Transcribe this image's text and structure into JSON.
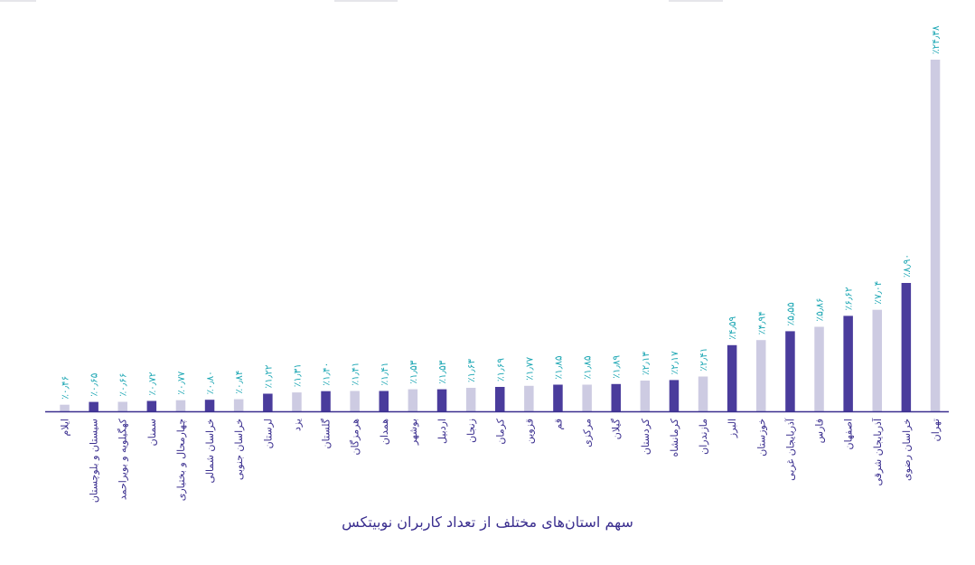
{
  "colors": {
    "dark": "#4a3c9c",
    "light": "#cdcbe2",
    "value_text": "#1ba6b3",
    "label_text": "#3b2f8f",
    "axis": "#3b2f8f"
  },
  "chart_data": {
    "type": "bar",
    "xlabel": "سهم استان‌های مختلف از تعداد کاربران نوبیتکس",
    "ylabel": "",
    "ylim": [
      0,
      24.38
    ],
    "grid": false,
    "categories": [
      "ایلام",
      "سیستان و بلوچستان",
      "کهگیلویه و بویراحمد",
      "سمنان",
      "چهارمحال و بختیاری",
      "خراسان شمالی",
      "خراسان جنوبی",
      "لرستان",
      "یزد",
      "گلستان",
      "هرمزگان",
      "همدان",
      "بوشهر",
      "اردبیل",
      "زنجان",
      "کرمان",
      "قزوین",
      "قم",
      "مرکزی",
      "گیلان",
      "کردستان",
      "کرمانشاه",
      "مازندران",
      "البرز",
      "خوزستان",
      "آذربایجان غربی",
      "فارس",
      "اصفهان",
      "آذربایجان شرقی",
      "خراسان رضوی",
      "تهران"
    ],
    "values": [
      0.46,
      0.65,
      0.66,
      0.72,
      0.77,
      0.8,
      0.84,
      1.22,
      1.31,
      1.4,
      1.41,
      1.41,
      1.53,
      1.53,
      1.63,
      1.69,
      1.77,
      1.85,
      1.85,
      1.89,
      2.13,
      2.17,
      2.41,
      4.59,
      4.94,
      5.55,
      5.86,
      6.62,
      7.04,
      8.9,
      24.38
    ],
    "value_labels": [
      "٪۰٫۴۶",
      "٪۰٫۶۵",
      "٪۰٫۶۶",
      "٪۰٫۷۲",
      "٪۰٫۷۷",
      "٪۰٫۸۰",
      "٪۰٫۸۴",
      "٪۱٫۲۲",
      "٪۱٫۳۱",
      "٪۱٫۴۰",
      "٪۱٫۴۱",
      "٪۱٫۴۱",
      "٪۱٫۵۳",
      "٪۱٫۵۳",
      "٪۱٫۶۳",
      "٪۱٫۶۹",
      "٪۱٫۷۷",
      "٪۱٫۸۵",
      "٪۱٫۸۵",
      "٪۱٫۸۹",
      "٪۲٫۱۳",
      "٪۲٫۱۷",
      "٪۲٫۴۱",
      "٪۴٫۵۹",
      "٪۴٫۹۴",
      "٪۵٫۵۵",
      "٪۵٫۸۶",
      "٪۶٫۶۲",
      "٪۷٫۰۴",
      "٪۸٫۹۰",
      "٪۲۴٫۳۸"
    ]
  }
}
